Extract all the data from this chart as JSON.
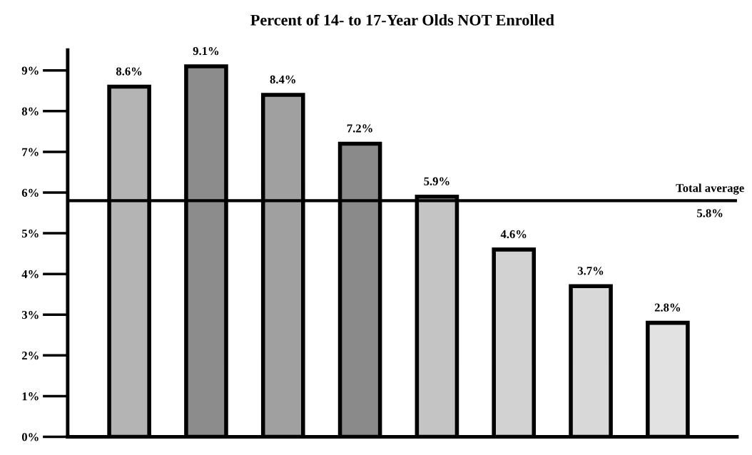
{
  "chart_data": {
    "type": "bar",
    "title": "Percent of 14- to 17-Year Olds NOT Enrolled",
    "categories": [
      null,
      null,
      null,
      null,
      null,
      null,
      null,
      null
    ],
    "values": [
      8.6,
      9.1,
      8.4,
      7.2,
      5.9,
      4.6,
      3.7,
      2.8
    ],
    "value_labels": [
      "8.6%",
      "9.1%",
      "8.4%",
      "7.2%",
      "5.9%",
      "4.6%",
      "3.7%",
      "2.8%"
    ],
    "colors": [
      "#b4b4b4",
      "#8c8c8c",
      "#a0a0a0",
      "#8a8a8a",
      "#c4c4c4",
      "#d2d2d2",
      "#d8d8d8",
      "#e2e2e2"
    ],
    "ylim": [
      0,
      9.5
    ],
    "yticks": [
      {
        "value": 0,
        "label": "0%"
      },
      {
        "value": 1,
        "label": "1%"
      },
      {
        "value": 2,
        "label": "2%"
      },
      {
        "value": 3,
        "label": "3%"
      },
      {
        "value": 4,
        "label": "4%"
      },
      {
        "value": 5,
        "label": "5%"
      },
      {
        "value": 6,
        "label": "6%"
      },
      {
        "value": 7,
        "label": "7%"
      },
      {
        "value": 8,
        "label": "8%"
      },
      {
        "value": 9,
        "label": "9%"
      }
    ],
    "ref_lines": [
      {
        "axis": "y",
        "value": 5.8,
        "label": "Total average",
        "color": "#000000"
      }
    ],
    "annotations": [
      "5.8%"
    ],
    "grid": false,
    "legend": false
  }
}
